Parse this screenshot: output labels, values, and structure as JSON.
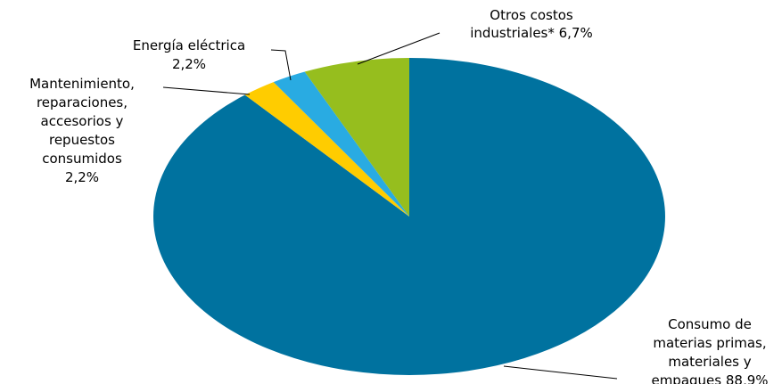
{
  "chart_data": {
    "type": "pie",
    "title": "",
    "legend": "none",
    "slices": [
      {
        "label_lines": [
          "Consumo de",
          "materias primas,",
          "materiales y",
          "empaques 88,9%"
        ],
        "value": 88.9,
        "color": "#00729F"
      },
      {
        "label_lines": [
          "Mantenimiento,",
          "reparaciones,",
          "accesorios y",
          "repuestos",
          "consumidos",
          "2,2%"
        ],
        "value": 2.2,
        "color": "#FFCC00"
      },
      {
        "label_lines": [
          "Energía eléctrica",
          "2,2%"
        ],
        "value": 2.2,
        "color": "#29ABE2"
      },
      {
        "label_lines": [
          "Otros costos",
          "industriales* 6,7%"
        ],
        "value": 6.7,
        "color": "#96BE1E"
      }
    ]
  }
}
